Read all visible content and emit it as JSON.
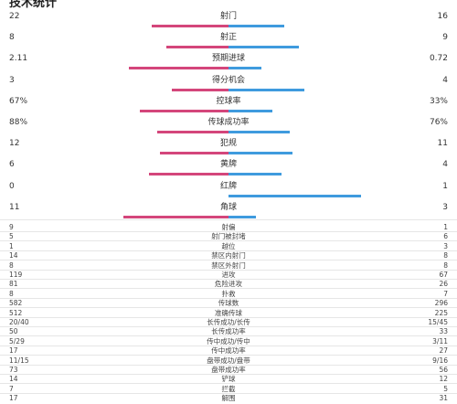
{
  "title": "技术统计",
  "colors": {
    "home": "#d4467b",
    "away": "#3f9bde"
  },
  "bar_stats": [
    {
      "label": "射门",
      "home": "22",
      "away": "16",
      "home_frac": 0.58,
      "away_frac": 0.42
    },
    {
      "label": "射正",
      "home": "8",
      "away": "9",
      "home_frac": 0.47,
      "away_frac": 0.53
    },
    {
      "label": "预期进球",
      "home": "2.11",
      "away": "0.72",
      "home_frac": 0.75,
      "away_frac": 0.25
    },
    {
      "label": "得分机会",
      "home": "3",
      "away": "4",
      "home_frac": 0.43,
      "away_frac": 0.57
    },
    {
      "label": "控球率",
      "home": "67%",
      "away": "33%",
      "home_frac": 0.67,
      "away_frac": 0.33
    },
    {
      "label": "传球成功率",
      "home": "88%",
      "away": "76%",
      "home_frac": 0.54,
      "away_frac": 0.46
    },
    {
      "label": "犯规",
      "home": "12",
      "away": "11",
      "home_frac": 0.52,
      "away_frac": 0.48
    },
    {
      "label": "黄牌",
      "home": "6",
      "away": "4",
      "home_frac": 0.6,
      "away_frac": 0.4
    },
    {
      "label": "红牌",
      "home": "0",
      "away": "1",
      "home_frac": 0.0,
      "away_frac": 1.0
    },
    {
      "label": "角球",
      "home": "11",
      "away": "3",
      "home_frac": 0.79,
      "away_frac": 0.21
    }
  ],
  "stats": [
    {
      "label": "射偏",
      "home": "9",
      "away": "1"
    },
    {
      "label": "射门被封堵",
      "home": "5",
      "away": "6"
    },
    {
      "label": "越位",
      "home": "1",
      "away": "3"
    },
    {
      "label": "禁区内射门",
      "home": "14",
      "away": "8"
    },
    {
      "label": "禁区外射门",
      "home": "8",
      "away": "8"
    },
    {
      "label": "进攻",
      "home": "119",
      "away": "67"
    },
    {
      "label": "危险进攻",
      "home": "81",
      "away": "26"
    },
    {
      "label": "扑救",
      "home": "8",
      "away": "7"
    },
    {
      "label": "传球数",
      "home": "582",
      "away": "296"
    },
    {
      "label": "准确传球",
      "home": "512",
      "away": "225"
    },
    {
      "label": "长传成功/长传",
      "home": "20/40",
      "away": "15/45"
    },
    {
      "label": "长传成功率",
      "home": "50",
      "away": "33"
    },
    {
      "label": "传中成功/传中",
      "home": "5/29",
      "away": "3/11"
    },
    {
      "label": "传中成功率",
      "home": "17",
      "away": "27"
    },
    {
      "label": "盘带成功/盘带",
      "home": "11/15",
      "away": "9/16"
    },
    {
      "label": "盘带成功率",
      "home": "73",
      "away": "56"
    },
    {
      "label": "铲球",
      "home": "14",
      "away": "12"
    },
    {
      "label": "拦截",
      "home": "7",
      "away": "5"
    },
    {
      "label": "解围",
      "home": "17",
      "away": "31"
    }
  ]
}
